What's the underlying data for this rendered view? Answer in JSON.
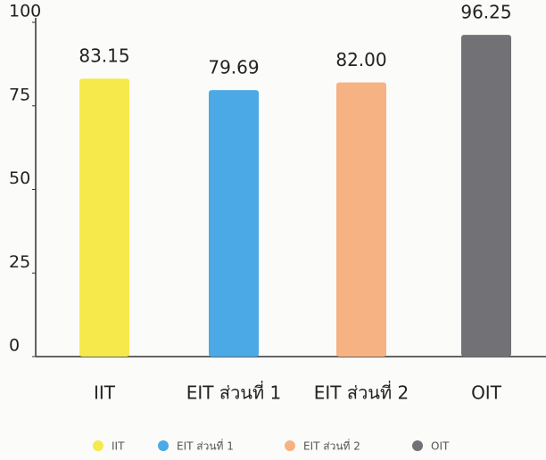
{
  "chart_data": {
    "type": "bar",
    "categories": [
      "IIT",
      "EIT ส่วนที่ 1",
      "EIT ส่วนที่ 2",
      "OIT"
    ],
    "values": [
      83.15,
      79.69,
      82,
      96.25
    ],
    "value_labels": [
      "83.15",
      "79.69",
      "82.00",
      "96.25"
    ],
    "colors": [
      "#f6e94c",
      "#4ba9e6",
      "#f6b283",
      "#717176"
    ],
    "ylim": [
      0,
      100
    ],
    "yticks": [
      0,
      25,
      50,
      75,
      100
    ],
    "grid": false,
    "legend": "bottom"
  }
}
